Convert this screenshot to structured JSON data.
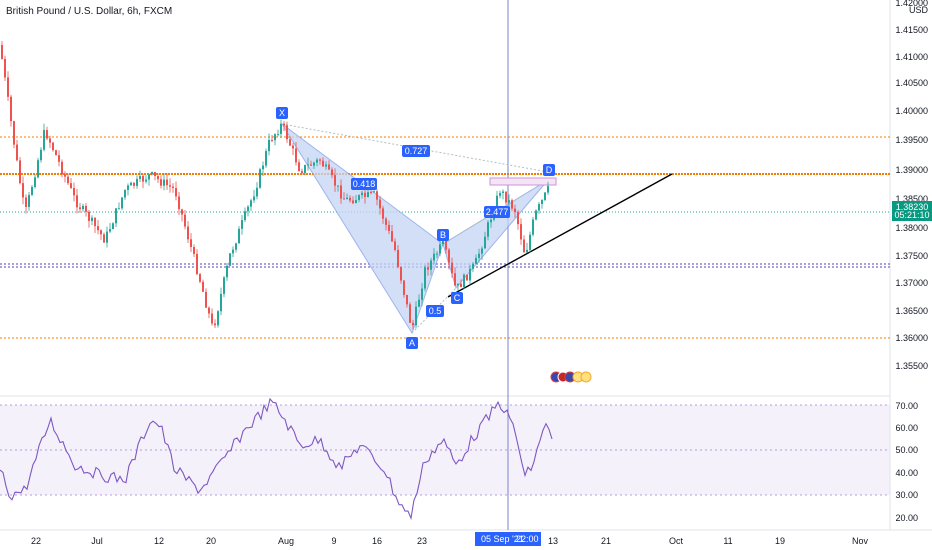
{
  "header": {
    "symbol_title": "British Pound / U.S. Dollar, 6h, FXCM"
  },
  "price_axis": {
    "currency": "USD",
    "ticks": [
      "1.42000",
      "1.41500",
      "1.41000",
      "1.40500",
      "1.40000",
      "1.39500",
      "1.39000",
      "1.38500",
      "1.38000",
      "1.37500",
      "1.37000",
      "1.36500",
      "1.36000",
      "1.35500"
    ],
    "current_price": "1.38230",
    "countdown": "05:21:10"
  },
  "rsi_axis": {
    "ticks": [
      "70.00",
      "60.00",
      "50.00",
      "40.00",
      "30.00",
      "20.00"
    ]
  },
  "time_axis": {
    "ticks": [
      "22",
      "Jul",
      "12",
      "20",
      "Aug",
      "9",
      "16",
      "23",
      "13",
      "21",
      "Oct",
      "11",
      "19",
      "Nov"
    ],
    "crosshair_label": "05 Sep '21",
    "crosshair_time": "22:00"
  },
  "pattern": {
    "points": [
      "X",
      "A",
      "B",
      "C",
      "D"
    ],
    "ratios": [
      "0.727",
      "0.418",
      "0.5",
      "2.477"
    ]
  },
  "colors": {
    "bull": "#26a69a",
    "bear": "#ef5350",
    "pattern_fill": "#c5d4f5",
    "pattern_label": "#2962ff",
    "orange_level": "#f57c00",
    "purple_level": "#673ab7",
    "rsi_line": "#7e57c2",
    "price_badge": "#089981"
  },
  "event_icons": [
    "us-flag-icon",
    "gb-flag-icon",
    "us-flag-icon",
    "coin-icon",
    "coin-icon"
  ]
}
